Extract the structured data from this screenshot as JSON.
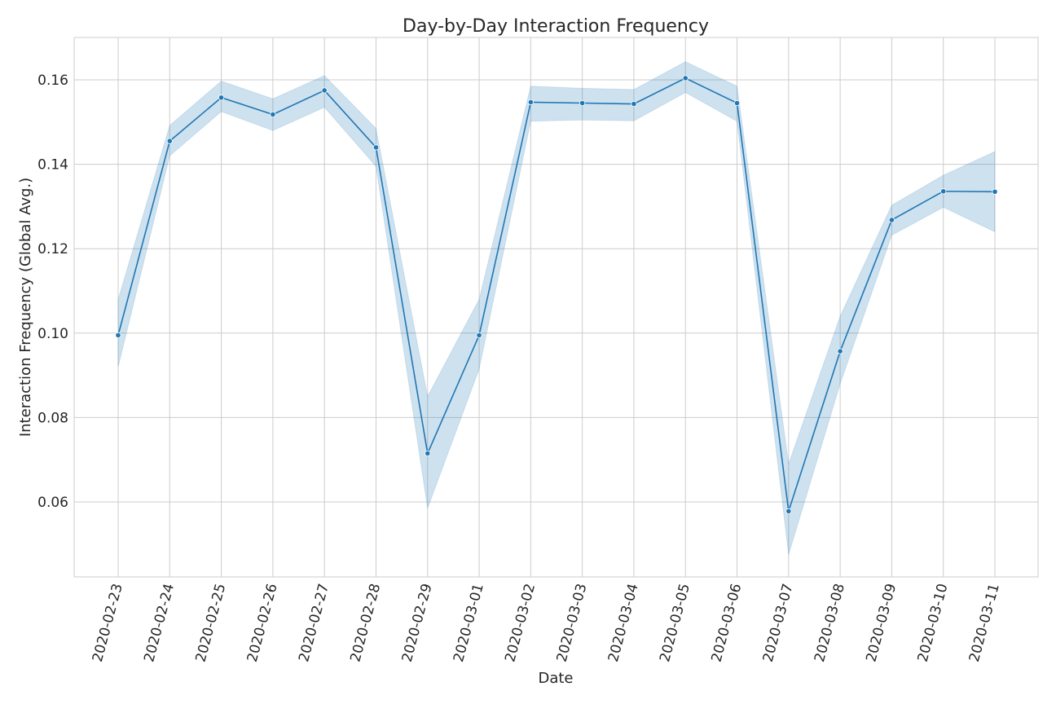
{
  "chart_data": {
    "type": "line",
    "title": "Day-by-Day Interaction Frequency",
    "xlabel": "Date",
    "ylabel": "Interaction Frequency (Global Avg.)",
    "categories": [
      "2020-02-23",
      "2020-02-24",
      "2020-02-25",
      "2020-02-26",
      "2020-02-27",
      "2020-02-28",
      "2020-02-29",
      "2020-03-01",
      "2020-03-02",
      "2020-03-03",
      "2020-03-04",
      "2020-03-05",
      "2020-03-06",
      "2020-03-07",
      "2020-03-08",
      "2020-03-09",
      "2020-03-10",
      "2020-03-11"
    ],
    "series": [
      {
        "values": [
          0.0995,
          0.1455,
          0.1558,
          0.1518,
          0.1575,
          0.144,
          0.0715,
          0.0995,
          0.1547,
          0.1545,
          0.1543,
          0.1604,
          0.1545,
          0.0578,
          0.0957,
          0.1268,
          0.1336,
          0.1335
        ],
        "ci_lower": [
          0.092,
          0.142,
          0.1525,
          0.148,
          0.1535,
          0.1395,
          0.0585,
          0.0915,
          0.1502,
          0.1505,
          0.1503,
          0.157,
          0.1502,
          0.0475,
          0.088,
          0.1232,
          0.1298,
          0.124
        ],
        "ci_upper": [
          0.108,
          0.1492,
          0.1597,
          0.1555,
          0.161,
          0.1485,
          0.085,
          0.108,
          0.1585,
          0.158,
          0.1577,
          0.1643,
          0.1585,
          0.069,
          0.104,
          0.1303,
          0.1374,
          0.143
        ],
        "color": "#1f77b4"
      }
    ],
    "yticks": [
      0.06,
      0.08,
      0.1,
      0.12,
      0.14,
      0.16
    ],
    "ytick_labels": [
      "0.06",
      "0.08",
      "0.10",
      "0.12",
      "0.14",
      "0.16"
    ],
    "ylim": [
      0.0425,
      0.17
    ],
    "grid": true
  }
}
